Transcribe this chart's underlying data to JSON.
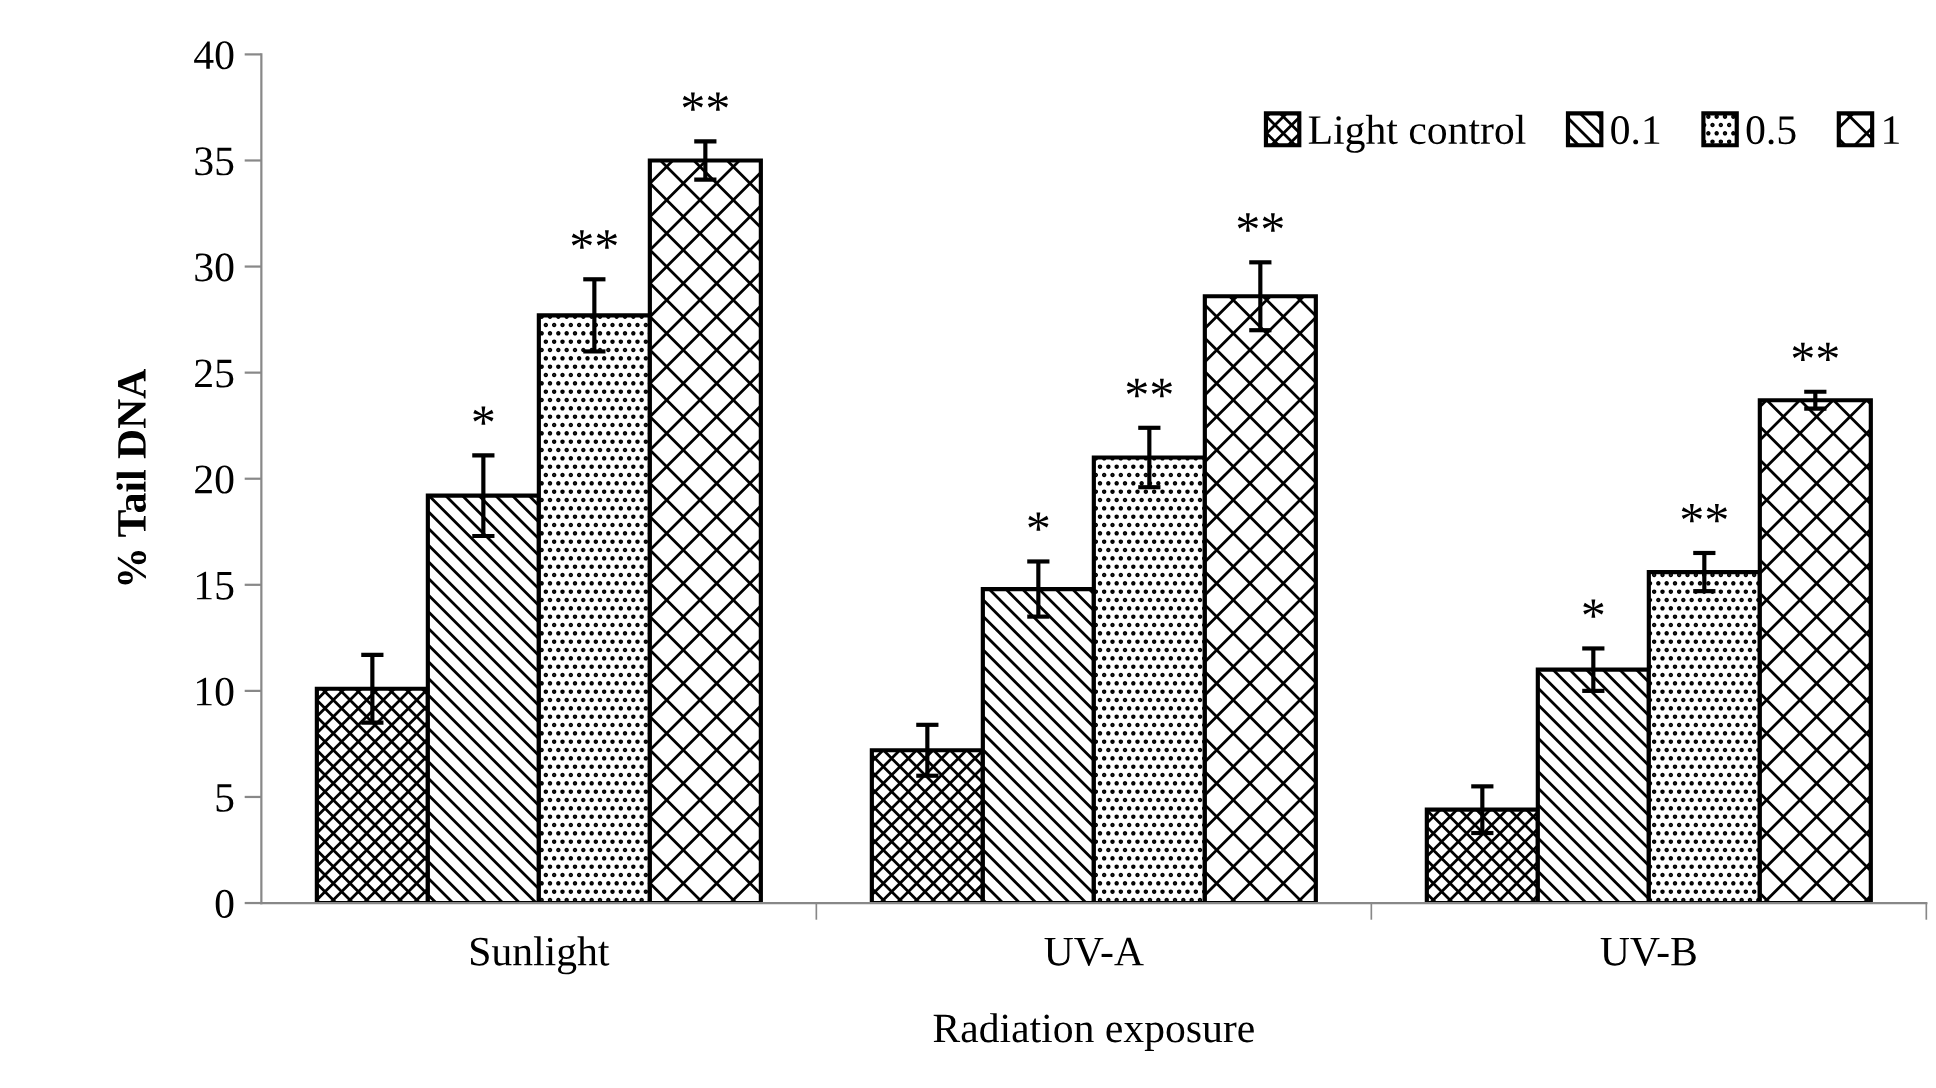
{
  "chart_data": {
    "type": "bar",
    "xlabel": "Radiation exposure",
    "ylabel": "% Tail DNA",
    "categories": [
      "Sunlight",
      "UV-A",
      "UV-B"
    ],
    "series": [
      {
        "name": "Light control",
        "color": "#000000",
        "values": [
          10.1,
          7.2,
          4.4
        ],
        "errors": [
          1.6,
          1.2,
          1.1
        ]
      },
      {
        "name": "0.1",
        "color": "#000000",
        "values": [
          19.2,
          14.8,
          11.0
        ],
        "errors": [
          1.9,
          1.3,
          1.0
        ]
      },
      {
        "name": "0.5",
        "color": "#000000",
        "values": [
          27.7,
          21.0,
          15.6
        ],
        "errors": [
          1.7,
          1.4,
          0.9
        ]
      },
      {
        "name": "1",
        "color": "#000000",
        "values": [
          35.0,
          28.6,
          23.7
        ],
        "errors": [
          0.9,
          1.6,
          0.4
        ]
      }
    ],
    "annotations": [
      "*",
      "**",
      "**",
      "*",
      "**",
      "**",
      "*",
      "**",
      "**"
    ],
    "ylim": [
      0,
      40
    ],
    "yticks": [
      0,
      5,
      10,
      15,
      20,
      25,
      30,
      35,
      40
    ],
    "grid": false,
    "legend": "top right"
  }
}
